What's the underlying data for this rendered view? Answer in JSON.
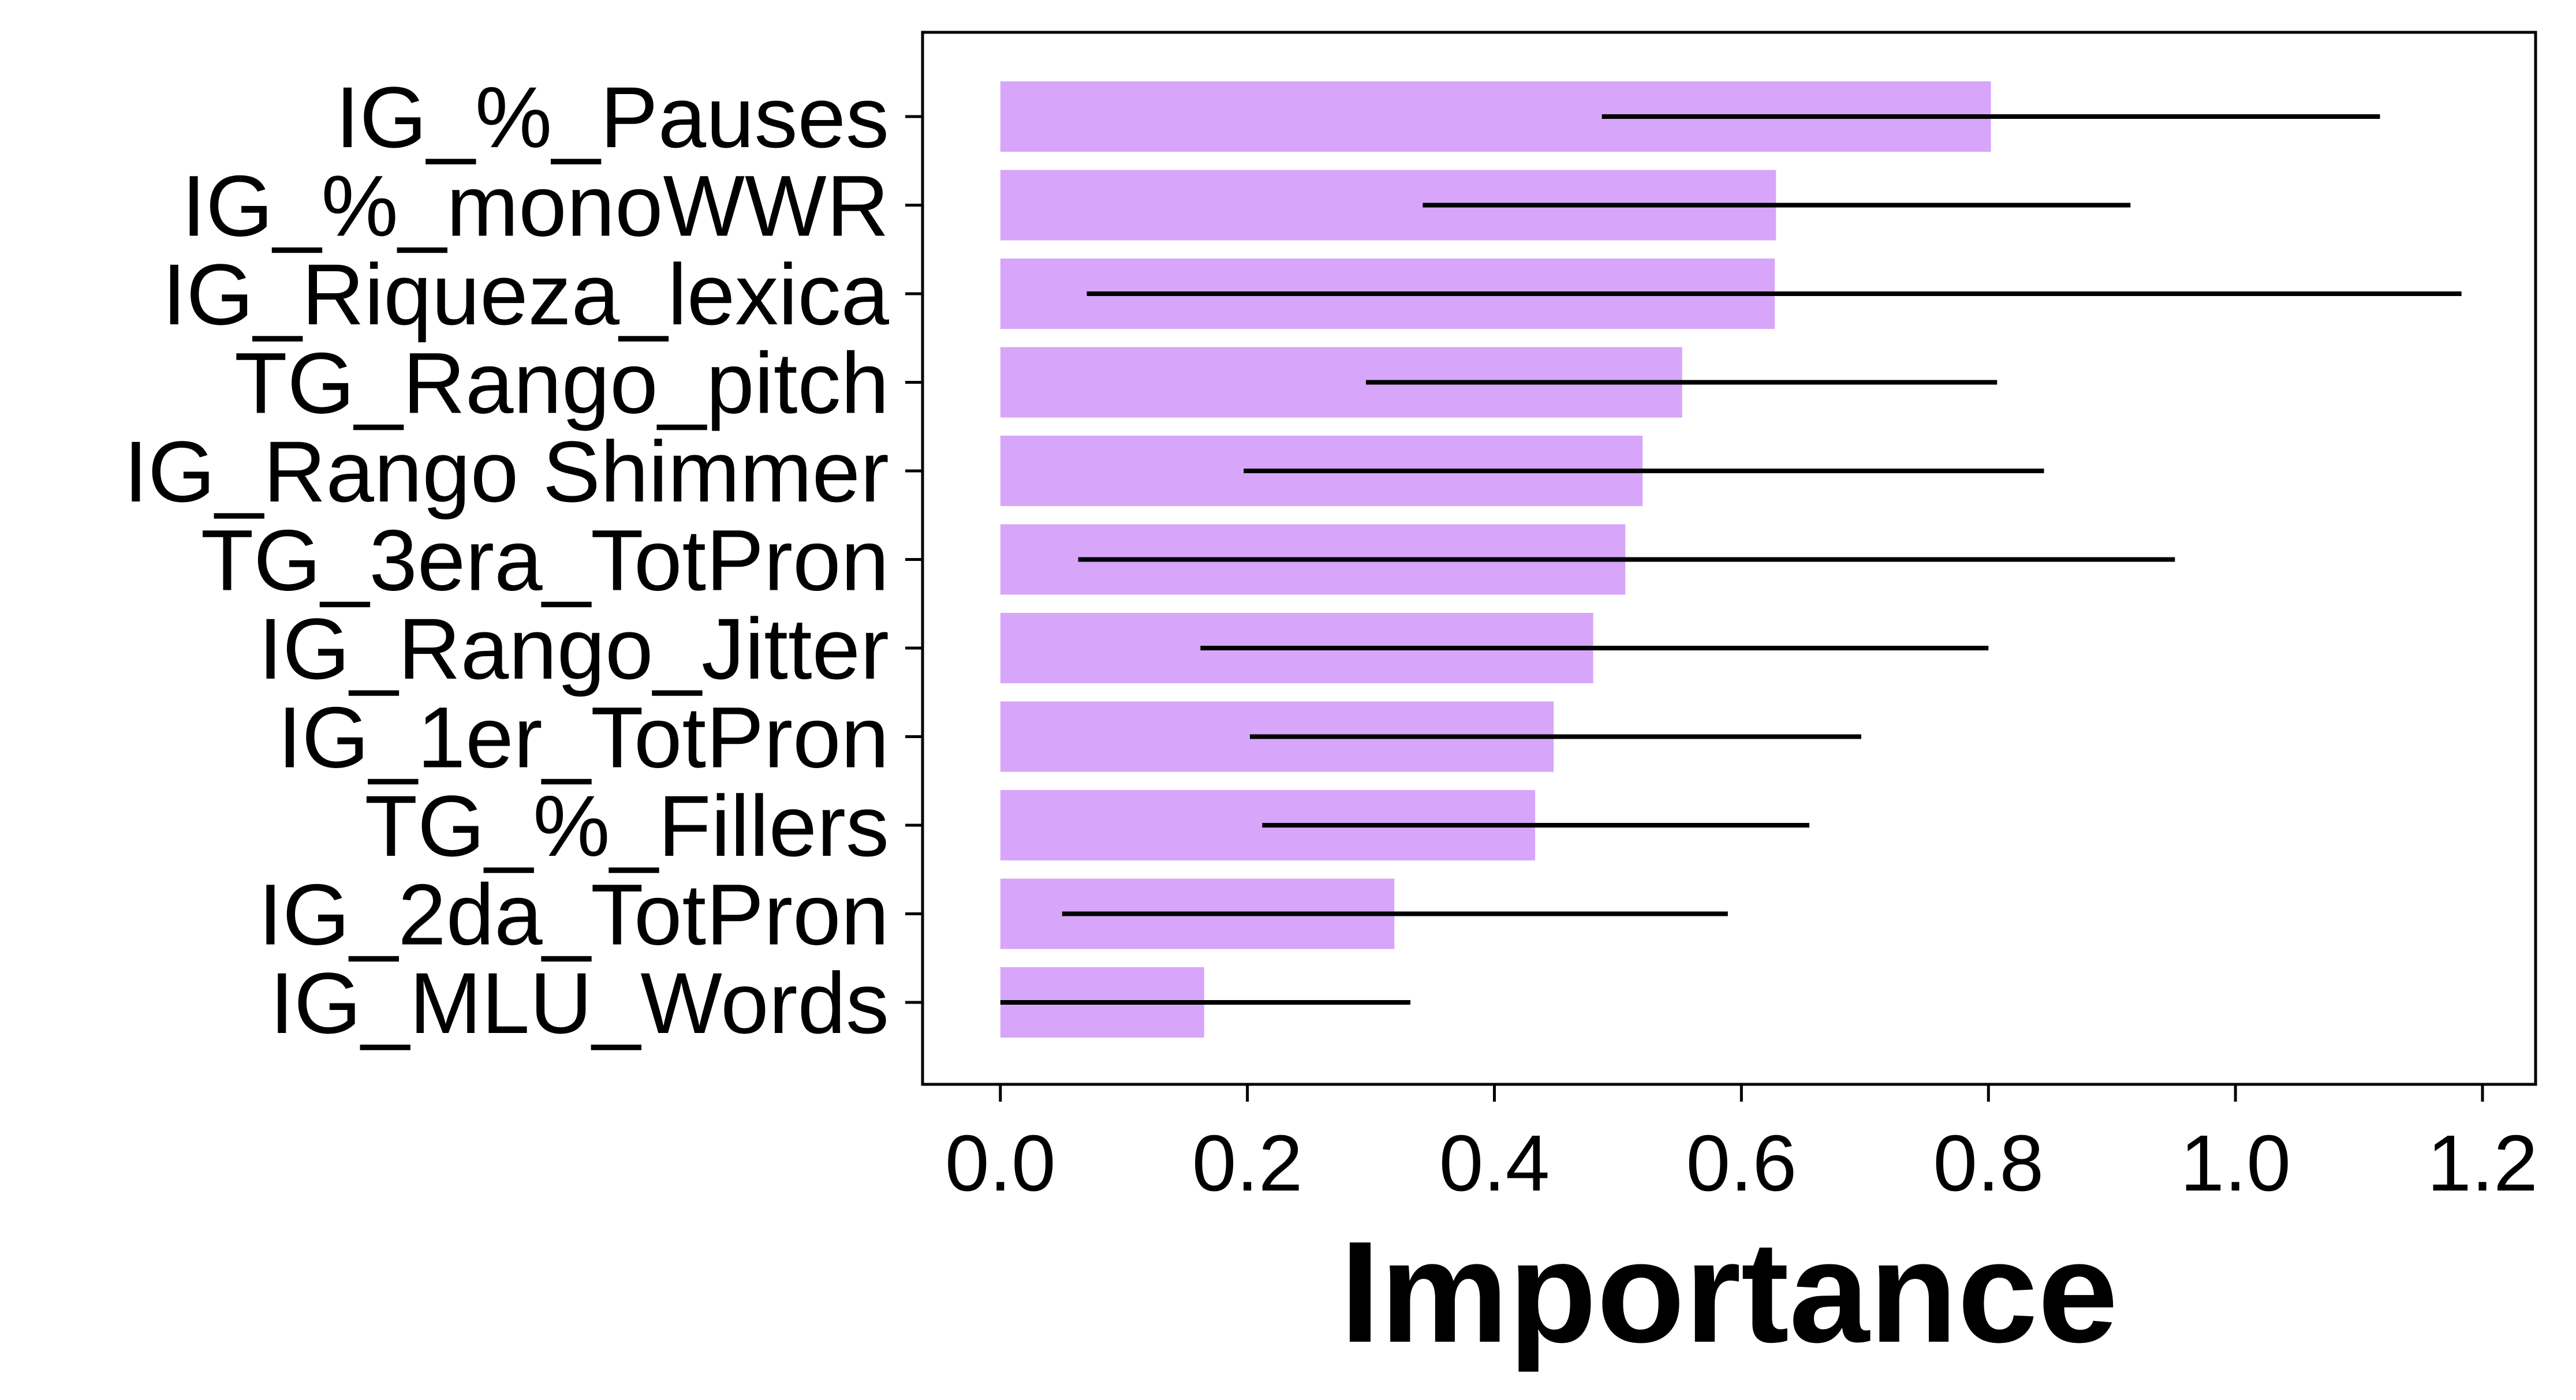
{
  "chart_data": {
    "type": "bar",
    "orientation": "horizontal",
    "xlabel": "Importance",
    "ylabel": "",
    "title": "",
    "xlim": [
      -0.063,
      1.243
    ],
    "xticks": [
      0.0,
      0.2,
      0.4,
      0.6,
      0.8,
      1.0,
      1.2
    ],
    "xtick_labels": [
      "0.0",
      "0.2",
      "0.4",
      "0.6",
      "0.8",
      "1.0",
      "1.2"
    ],
    "grid": false,
    "bar_color": "#d7a6fb",
    "error_color": "#000000",
    "categories": [
      "IG_%_Pauses",
      "IG_%_monoWWR",
      "IG_Riqueza_lexica",
      "TG_Rango_pitch",
      "IG_Rango Shimmer",
      "TG_3era_TotPron",
      "IG_Rango_Jitter",
      "IG_1er_TotPron",
      "TG_%_Fillers",
      "IG_2da_TotPron",
      "IG_MLU_Words"
    ],
    "values": [
      0.802,
      0.628,
      0.627,
      0.552,
      0.52,
      0.506,
      0.48,
      0.448,
      0.433,
      0.319,
      0.165
    ],
    "error_low": [
      0.487,
      0.342,
      0.07,
      0.296,
      0.197,
      0.063,
      0.162,
      0.202,
      0.212,
      0.05,
      0.0
    ],
    "error_high": [
      1.117,
      0.915,
      1.183,
      0.807,
      0.845,
      0.951,
      0.8,
      0.697,
      0.655,
      0.589,
      0.332
    ]
  }
}
